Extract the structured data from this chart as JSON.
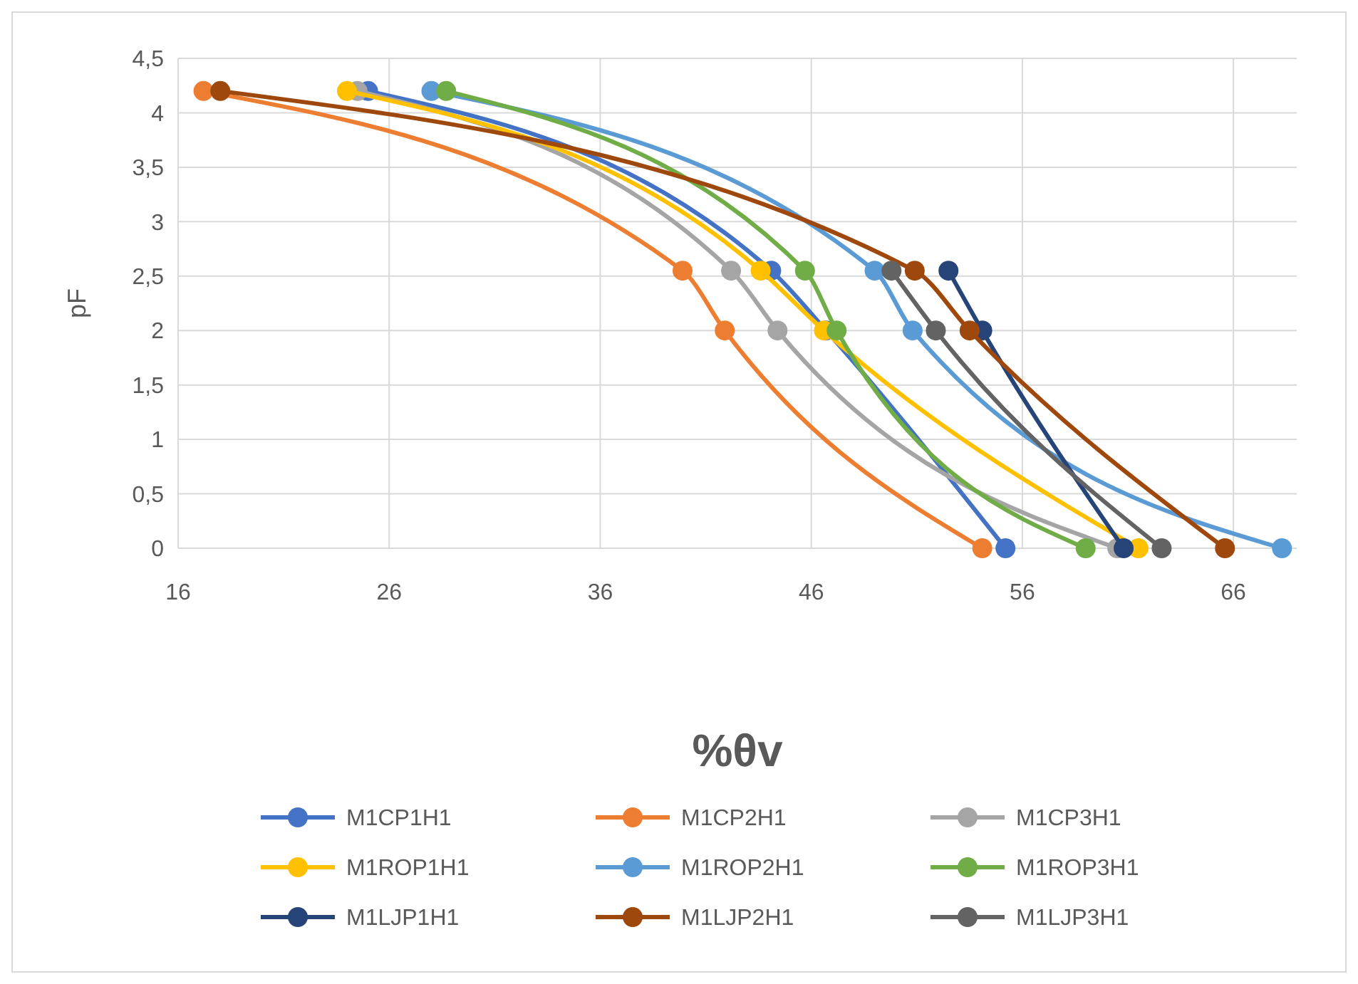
{
  "chart_data": {
    "type": "line",
    "xlabel": "%θv",
    "ylabel": "pF",
    "xlim": [
      16,
      69
    ],
    "xticks": [
      16,
      26,
      36,
      46,
      56,
      66
    ],
    "ylim": [
      0,
      4.5
    ],
    "yticks": [
      0,
      {
        "value": 0.5,
        "label": "0,5"
      },
      1,
      {
        "value": 1.5,
        "label": "1,5"
      },
      2,
      {
        "value": 2.5,
        "label": "2,5"
      },
      3,
      {
        "value": 3.5,
        "label": "3,5"
      },
      4,
      {
        "value": 4.5,
        "label": "4,5"
      }
    ],
    "grid": true,
    "legend": "bottom",
    "marker": "circle",
    "line_style": "solid",
    "series": [
      {
        "name": "M1CP1H1",
        "color": "#4472c4",
        "x": [
          25.0,
          44.1,
          46.7,
          55.2
        ],
        "values": [
          4.2,
          2.55,
          2,
          0
        ]
      },
      {
        "name": "M1CP2H1",
        "color": "#ed7d31",
        "x": [
          17.2,
          39.9,
          41.9,
          54.1
        ],
        "values": [
          4.2,
          2.55,
          2,
          0
        ]
      },
      {
        "name": "M1CP3H1",
        "color": "#a5a5a5",
        "x": [
          24.5,
          42.2,
          44.4,
          60.5
        ],
        "values": [
          4.2,
          2.55,
          2,
          0
        ]
      },
      {
        "name": "M1ROP1H1",
        "color": "#ffc000",
        "x": [
          24.0,
          43.6,
          46.6,
          61.5
        ],
        "values": [
          4.2,
          2.55,
          2,
          0
        ]
      },
      {
        "name": "M1ROP2H1",
        "color": "#5b9bd5",
        "x": [
          28.0,
          49.0,
          50.8,
          68.3
        ],
        "values": [
          4.2,
          2.55,
          2,
          0
        ]
      },
      {
        "name": "M1ROP3H1",
        "color": "#70ad47",
        "x": [
          28.7,
          45.7,
          47.2,
          59.0
        ],
        "values": [
          4.2,
          2.55,
          2,
          0
        ]
      },
      {
        "name": "M1LJP1H1",
        "color": "#264478",
        "x": [
          52.5,
          54.1,
          60.8
        ],
        "values": [
          2.55,
          2,
          0
        ]
      },
      {
        "name": "M1LJP2H1",
        "color": "#9e480e",
        "x": [
          18.0,
          50.9,
          53.5,
          65.6
        ],
        "values": [
          4.2,
          2.55,
          2,
          0
        ]
      },
      {
        "name": "M1LJP3H1",
        "color": "#636363",
        "x": [
          49.8,
          51.9,
          62.6
        ],
        "values": [
          2.55,
          2,
          0
        ]
      }
    ]
  }
}
